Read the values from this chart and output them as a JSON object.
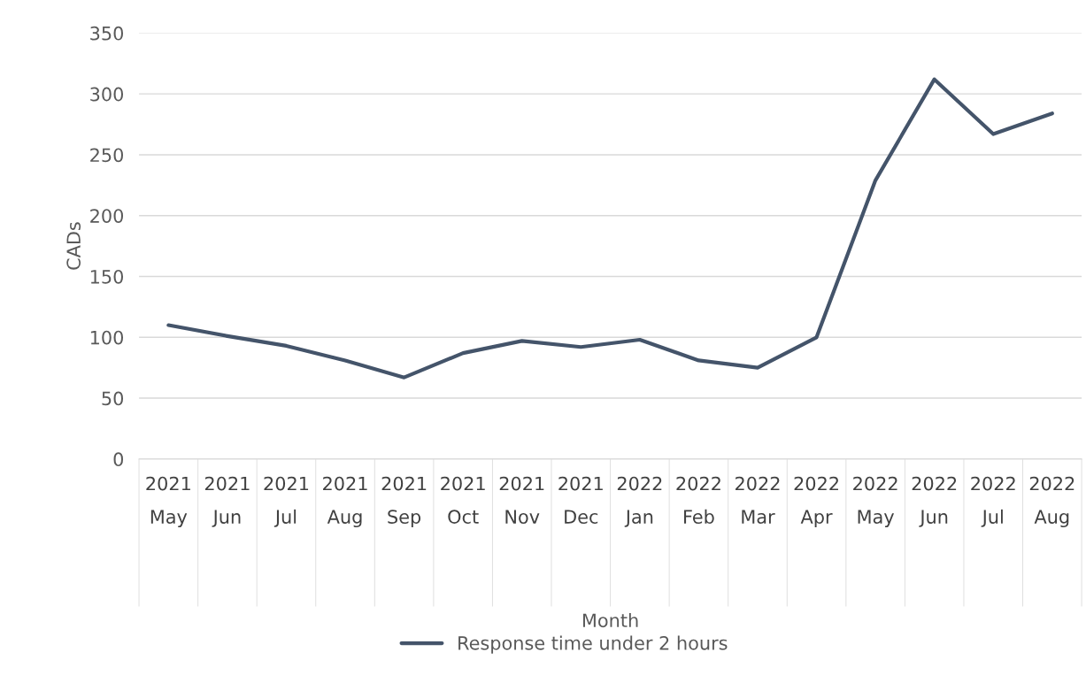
{
  "chart_data": {
    "type": "line",
    "xlabel": "Month",
    "ylabel": "CADs",
    "categories": [
      "2021\nMay",
      "2021\nJun",
      "2021\nJul",
      "2021\nAug",
      "2021\nSep",
      "2021\nOct",
      "2021\nNov",
      "2021\nDec",
      "2022\nJan",
      "2022\nFeb",
      "2022\nMar",
      "2022\nApr",
      "2022\nMay",
      "2022\nJun",
      "2022\nJul",
      "2022\nAug"
    ],
    "series": [
      {
        "name": "Response time under 2 hours",
        "color": "#44546a",
        "values": [
          110,
          101,
          93,
          81,
          67,
          87,
          97,
          92,
          98,
          81,
          75,
          100,
          229,
          312,
          267,
          284
        ]
      }
    ],
    "ylim": [
      0,
      350
    ],
    "yticks": [
      0,
      50,
      100,
      150,
      200,
      250,
      300,
      350
    ],
    "grid": "y",
    "legend": "bottom",
    "marker": "none",
    "line_style": "solid"
  }
}
